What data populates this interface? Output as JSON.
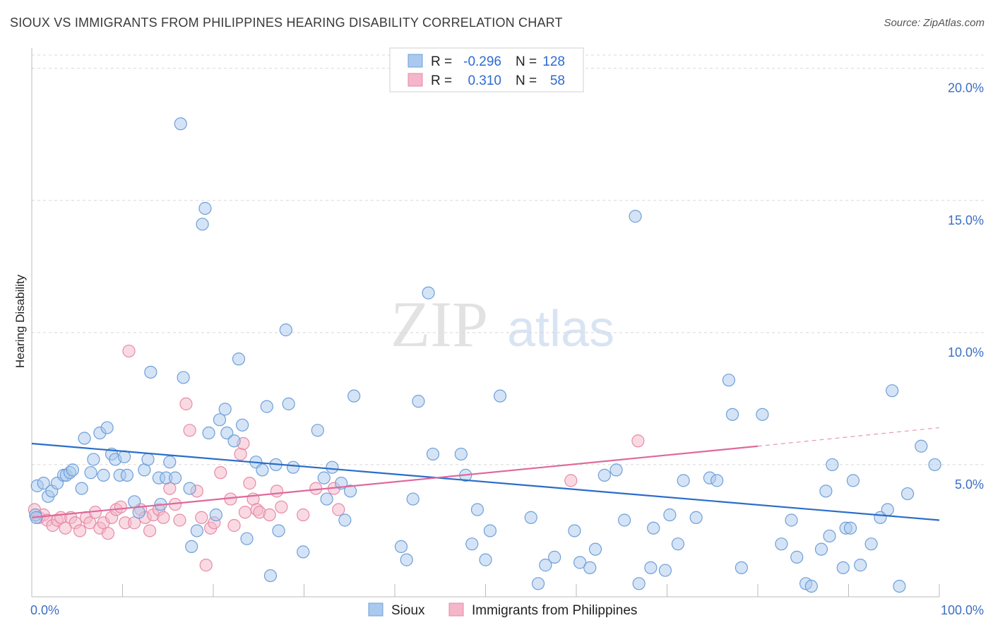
{
  "title": "SIOUX VS IMMIGRANTS FROM PHILIPPINES HEARING DISABILITY CORRELATION CHART",
  "source": "Source: ZipAtlas.com",
  "watermark": {
    "zip": "ZIP",
    "atlas": "atlas"
  },
  "colors": {
    "sioux_fill": "#a9c9ee",
    "sioux_stroke": "#6f9fd8",
    "sioux_line": "#2a6dc9",
    "phil_fill": "#f4b6c8",
    "phil_stroke": "#e88aa6",
    "phil_line": "#e0689a",
    "tick_text": "#3b6fc4",
    "grid": "#d8d8d8"
  },
  "legend": {
    "rows": [
      {
        "r_label": "R =",
        "r_value": "-0.296",
        "n_label": "N =",
        "n_value": "128"
      },
      {
        "r_label": "R =",
        "r_value": "0.310",
        "n_label": "N =",
        "n_value": "58"
      }
    ]
  },
  "bottom_legend": [
    "Sioux",
    "Immigrants from Philippines"
  ],
  "chart_data": {
    "type": "scatter",
    "title": "SIOUX VS IMMIGRANTS FROM PHILIPPINES HEARING DISABILITY CORRELATION CHART",
    "xlabel": "",
    "ylabel": "Hearing Disability",
    "xlim": [
      0,
      100
    ],
    "ylim": [
      0,
      20.5
    ],
    "x_tick_labels": [
      "0.0%",
      "100.0%"
    ],
    "y_ticks": [
      5,
      10,
      15,
      20
    ],
    "y_tick_labels": [
      "5.0%",
      "10.0%",
      "15.0%",
      "20.0%"
    ],
    "grid": true,
    "legend_position": "top-center",
    "series": [
      {
        "name": "Sioux",
        "trend": {
          "x": [
            0,
            100
          ],
          "y": [
            5.8,
            2.9
          ]
        },
        "points": [
          [
            0.4,
            3.1
          ],
          [
            0.6,
            4.2
          ],
          [
            1.3,
            4.3
          ],
          [
            1.8,
            3.8
          ],
          [
            2.2,
            4.0
          ],
          [
            2.8,
            4.3
          ],
          [
            3.5,
            4.6
          ],
          [
            3.8,
            4.6
          ],
          [
            4.2,
            4.7
          ],
          [
            4.5,
            4.8
          ],
          [
            5.5,
            4.1
          ],
          [
            5.8,
            6.0
          ],
          [
            6.5,
            4.7
          ],
          [
            6.8,
            5.2
          ],
          [
            7.5,
            6.2
          ],
          [
            7.9,
            4.6
          ],
          [
            8.3,
            6.4
          ],
          [
            8.8,
            5.4
          ],
          [
            9.2,
            5.2
          ],
          [
            9.7,
            4.6
          ],
          [
            10.2,
            5.3
          ],
          [
            10.5,
            4.6
          ],
          [
            11.3,
            3.6
          ],
          [
            11.8,
            3.2
          ],
          [
            12.4,
            4.8
          ],
          [
            12.8,
            5.2
          ],
          [
            13.1,
            8.5
          ],
          [
            14.0,
            4.5
          ],
          [
            14.2,
            3.5
          ],
          [
            14.8,
            4.5
          ],
          [
            15.2,
            5.1
          ],
          [
            15.8,
            4.5
          ],
          [
            16.4,
            17.9
          ],
          [
            16.7,
            8.3
          ],
          [
            17.4,
            4.1
          ],
          [
            17.6,
            1.9
          ],
          [
            18.2,
            2.5
          ],
          [
            18.8,
            14.1
          ],
          [
            19.1,
            14.7
          ],
          [
            19.5,
            6.2
          ],
          [
            20.3,
            3.1
          ],
          [
            20.7,
            6.7
          ],
          [
            21.3,
            7.1
          ],
          [
            21.5,
            6.2
          ],
          [
            22.3,
            5.9
          ],
          [
            22.8,
            9.0
          ],
          [
            23.2,
            6.5
          ],
          [
            23.7,
            2.2
          ],
          [
            24.7,
            5.1
          ],
          [
            25.4,
            4.8
          ],
          [
            25.9,
            7.2
          ],
          [
            26.3,
            0.8
          ],
          [
            26.9,
            5.0
          ],
          [
            27.2,
            2.5
          ],
          [
            28.0,
            10.1
          ],
          [
            28.3,
            7.3
          ],
          [
            28.8,
            4.9
          ],
          [
            29.9,
            1.7
          ],
          [
            31.5,
            6.3
          ],
          [
            32.2,
            4.5
          ],
          [
            32.5,
            3.7
          ],
          [
            33.1,
            4.9
          ],
          [
            34.1,
            4.3
          ],
          [
            34.5,
            2.9
          ],
          [
            35.1,
            4.0
          ],
          [
            35.5,
            7.6
          ],
          [
            40.7,
            1.9
          ],
          [
            41.3,
            1.4
          ],
          [
            42.0,
            3.7
          ],
          [
            42.6,
            7.4
          ],
          [
            43.7,
            11.5
          ],
          [
            44.2,
            5.4
          ],
          [
            47.3,
            5.4
          ],
          [
            47.8,
            4.6
          ],
          [
            48.5,
            2.0
          ],
          [
            49.1,
            3.3
          ],
          [
            50.0,
            1.4
          ],
          [
            50.5,
            2.5
          ],
          [
            51.6,
            7.6
          ],
          [
            55.0,
            3.0
          ],
          [
            55.8,
            0.5
          ],
          [
            56.6,
            1.2
          ],
          [
            57.6,
            1.5
          ],
          [
            59.8,
            2.5
          ],
          [
            60.4,
            1.3
          ],
          [
            61.5,
            1.1
          ],
          [
            62.1,
            1.8
          ],
          [
            63.1,
            4.6
          ],
          [
            64.4,
            4.8
          ],
          [
            65.3,
            2.9
          ],
          [
            66.5,
            14.4
          ],
          [
            66.9,
            0.5
          ],
          [
            68.2,
            1.1
          ],
          [
            68.5,
            2.6
          ],
          [
            69.8,
            1.0
          ],
          [
            70.3,
            3.1
          ],
          [
            71.2,
            2.0
          ],
          [
            71.8,
            4.4
          ],
          [
            73.2,
            3.0
          ],
          [
            74.7,
            4.5
          ],
          [
            75.5,
            4.4
          ],
          [
            76.8,
            8.2
          ],
          [
            77.2,
            6.9
          ],
          [
            78.2,
            1.1
          ],
          [
            80.5,
            6.9
          ],
          [
            82.6,
            2.0
          ],
          [
            83.7,
            2.9
          ],
          [
            84.3,
            1.5
          ],
          [
            85.3,
            0.5
          ],
          [
            85.9,
            0.4
          ],
          [
            87.0,
            1.8
          ],
          [
            87.5,
            4.0
          ],
          [
            87.9,
            2.3
          ],
          [
            88.2,
            5.0
          ],
          [
            89.4,
            1.1
          ],
          [
            89.7,
            2.6
          ],
          [
            90.2,
            2.6
          ],
          [
            90.5,
            4.4
          ],
          [
            91.3,
            1.2
          ],
          [
            92.5,
            2.0
          ],
          [
            93.5,
            3.0
          ],
          [
            94.3,
            3.3
          ],
          [
            94.8,
            7.8
          ],
          [
            95.6,
            0.4
          ],
          [
            96.5,
            3.9
          ],
          [
            98.0,
            5.7
          ],
          [
            99.5,
            5.0
          ],
          [
            0.5,
            3.0
          ]
        ]
      },
      {
        "name": "Immigrants from Philippines",
        "trend": {
          "x": [
            0,
            80
          ],
          "y": [
            3.0,
            5.7
          ]
        },
        "trend_dashed": {
          "x": [
            80,
            100
          ],
          "y": [
            5.7,
            6.4
          ]
        },
        "points": [
          [
            0.3,
            3.3
          ],
          [
            0.8,
            3.0
          ],
          [
            1.3,
            3.1
          ],
          [
            1.7,
            2.9
          ],
          [
            2.3,
            2.7
          ],
          [
            2.8,
            2.9
          ],
          [
            3.2,
            3.0
          ],
          [
            3.7,
            2.6
          ],
          [
            4.3,
            3.0
          ],
          [
            4.8,
            2.8
          ],
          [
            5.3,
            2.5
          ],
          [
            6.0,
            3.0
          ],
          [
            6.4,
            2.8
          ],
          [
            7.0,
            3.2
          ],
          [
            7.5,
            2.6
          ],
          [
            7.9,
            2.8
          ],
          [
            8.4,
            2.4
          ],
          [
            8.8,
            3.0
          ],
          [
            9.3,
            3.3
          ],
          [
            9.8,
            3.4
          ],
          [
            10.3,
            2.8
          ],
          [
            10.7,
            9.3
          ],
          [
            11.3,
            2.8
          ],
          [
            12.0,
            3.3
          ],
          [
            12.5,
            3.0
          ],
          [
            13.0,
            2.5
          ],
          [
            13.4,
            3.1
          ],
          [
            14.0,
            3.3
          ],
          [
            14.5,
            3.0
          ],
          [
            15.2,
            4.1
          ],
          [
            15.8,
            3.5
          ],
          [
            16.3,
            2.9
          ],
          [
            17.0,
            7.3
          ],
          [
            17.4,
            6.3
          ],
          [
            18.2,
            4.0
          ],
          [
            18.7,
            3.0
          ],
          [
            19.2,
            1.2
          ],
          [
            19.7,
            2.6
          ],
          [
            20.1,
            2.8
          ],
          [
            20.8,
            4.7
          ],
          [
            21.9,
            3.7
          ],
          [
            22.3,
            2.7
          ],
          [
            23.0,
            5.4
          ],
          [
            23.3,
            5.8
          ],
          [
            23.5,
            3.2
          ],
          [
            24.0,
            4.3
          ],
          [
            24.4,
            3.7
          ],
          [
            24.8,
            3.3
          ],
          [
            25.1,
            3.2
          ],
          [
            26.2,
            3.1
          ],
          [
            27.0,
            4.0
          ],
          [
            27.5,
            3.4
          ],
          [
            29.9,
            3.1
          ],
          [
            31.3,
            4.1
          ],
          [
            33.3,
            4.1
          ],
          [
            33.8,
            3.3
          ],
          [
            59.4,
            4.4
          ],
          [
            66.8,
            5.9
          ]
        ]
      }
    ]
  }
}
